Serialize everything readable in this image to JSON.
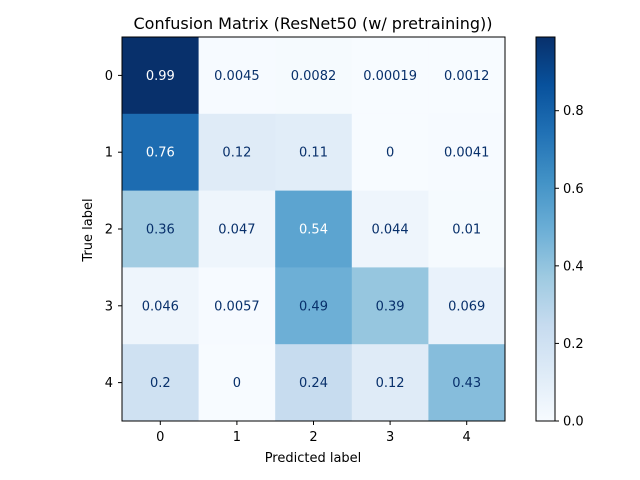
{
  "chart_data": {
    "type": "heatmap",
    "title": "Confusion Matrix (ResNet50 (w/ pretraining))",
    "xlabel": "Predicted label",
    "ylabel": "True label",
    "x_categories": [
      "0",
      "1",
      "2",
      "3",
      "4"
    ],
    "y_categories": [
      "0",
      "1",
      "2",
      "3",
      "4"
    ],
    "values": [
      [
        0.99,
        0.0045,
        0.0082,
        0.00019,
        0.0012
      ],
      [
        0.76,
        0.12,
        0.11,
        0,
        0.0041
      ],
      [
        0.36,
        0.047,
        0.54,
        0.044,
        0.01
      ],
      [
        0.046,
        0.0057,
        0.49,
        0.39,
        0.069
      ],
      [
        0.2,
        0,
        0.24,
        0.12,
        0.43
      ]
    ],
    "cell_labels": [
      [
        "0.99",
        "0.0045",
        "0.0082",
        "0.00019",
        "0.0012"
      ],
      [
        "0.76",
        "0.12",
        "0.11",
        "0",
        "0.0041"
      ],
      [
        "0.36",
        "0.047",
        "0.54",
        "0.044",
        "0.01"
      ],
      [
        "0.046",
        "0.0057",
        "0.49",
        "0.39",
        "0.069"
      ],
      [
        "0.2",
        "0",
        "0.24",
        "0.12",
        "0.43"
      ]
    ],
    "colormap": "Blues",
    "colorbar": {
      "range": [
        0,
        0.99
      ],
      "ticks": [
        0.0,
        0.2,
        0.4,
        0.6,
        0.8
      ],
      "tick_labels": [
        "0.0",
        "0.2",
        "0.4",
        "0.6",
        "0.8"
      ]
    },
    "grid": false
  }
}
